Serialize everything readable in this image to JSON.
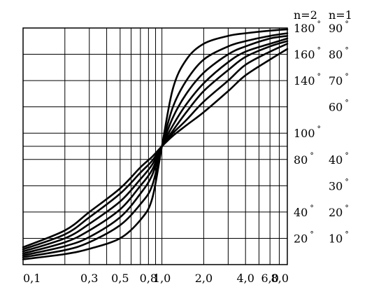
{
  "chart_data": {
    "type": "line",
    "title": "",
    "xlabel": "",
    "ylabel": "",
    "x_scale": "log",
    "xlim": [
      0.1,
      8.0
    ],
    "x_ticks": [
      {
        "value": 0.1,
        "label": "0,1"
      },
      {
        "value": 0.3,
        "label": "0,3"
      },
      {
        "value": 0.5,
        "label": "0,5"
      },
      {
        "value": 0.8,
        "label": "0,8"
      },
      {
        "value": 1.0,
        "label": "1,0"
      },
      {
        "value": 2.0,
        "label": "2,0"
      },
      {
        "value": 4.0,
        "label": "4,0"
      },
      {
        "value": 6.0,
        "label": "6,0"
      },
      {
        "value": 8.0,
        "label": "8,0"
      }
    ],
    "x_gridlines": [
      0.1,
      0.2,
      0.3,
      0.4,
      0.5,
      0.6,
      0.7,
      0.8,
      0.9,
      1.0,
      2.0,
      3.0,
      4.0,
      5.0,
      6.0,
      7.0,
      8.0
    ],
    "ylim": [
      0,
      90
    ],
    "y_gridlines": [
      10,
      20,
      30,
      40,
      45,
      50,
      60,
      70,
      80,
      90
    ],
    "y_axis_headers": {
      "n2": "n=2",
      "n1": "n=1"
    },
    "y_ticks_n2": [
      {
        "value": 10,
        "label": "20"
      },
      {
        "value": 20,
        "label": "40"
      },
      {
        "value": 40,
        "label": "80"
      },
      {
        "value": 50,
        "label": "100"
      },
      {
        "value": 70,
        "label": "140"
      },
      {
        "value": 80,
        "label": "160"
      },
      {
        "value": 90,
        "label": "180"
      }
    ],
    "y_ticks_n1": [
      {
        "value": 10,
        "label": "10"
      },
      {
        "value": 20,
        "label": "20"
      },
      {
        "value": 30,
        "label": "30"
      },
      {
        "value": 40,
        "label": "40"
      },
      {
        "value": 60,
        "label": "60"
      },
      {
        "value": 70,
        "label": "70"
      },
      {
        "value": 80,
        "label": "80"
      },
      {
        "value": 90,
        "label": "90"
      }
    ],
    "degree_symbol": "°",
    "grid": true,
    "series": [
      {
        "x": [
          0.1,
          0.2,
          0.3,
          0.5,
          0.7,
          0.85,
          1.0,
          1.2,
          1.5,
          2.0,
          3.0,
          4.0,
          6.0,
          8.0
        ],
        "values": [
          2,
          4,
          6,
          10,
          17,
          25,
          45,
          67,
          78,
          84,
          87,
          88,
          89,
          89.5
        ]
      },
      {
        "x": [
          0.1,
          0.2,
          0.3,
          0.5,
          0.7,
          0.85,
          1.0,
          1.2,
          1.5,
          2.0,
          3.0,
          4.0,
          6.0,
          8.0
        ],
        "values": [
          2.8,
          5.5,
          8.5,
          15,
          23,
          30,
          45,
          60,
          70,
          78,
          83,
          85,
          87,
          88
        ]
      },
      {
        "x": [
          0.1,
          0.2,
          0.3,
          0.5,
          0.7,
          0.85,
          1.0,
          1.2,
          1.5,
          2.0,
          3.0,
          4.0,
          6.0,
          8.0
        ],
        "values": [
          3.5,
          7,
          10.5,
          18,
          27,
          34,
          45,
          56,
          65,
          73,
          80,
          83,
          86,
          87
        ]
      },
      {
        "x": [
          0.1,
          0.2,
          0.3,
          0.5,
          0.7,
          0.85,
          1.0,
          1.2,
          1.5,
          2.0,
          3.0,
          4.0,
          6.0,
          8.0
        ],
        "values": [
          4.2,
          8.5,
          13,
          21,
          30,
          36,
          45,
          53,
          61,
          69,
          77,
          81,
          84,
          86
        ]
      },
      {
        "x": [
          0.1,
          0.2,
          0.3,
          0.5,
          0.7,
          0.85,
          1.0,
          1.2,
          1.5,
          2.0,
          3.0,
          4.0,
          6.0,
          8.0
        ],
        "values": [
          5,
          10,
          15.5,
          24,
          32.5,
          38,
          45,
          51,
          58,
          66,
          74,
          79,
          83,
          85
        ]
      },
      {
        "x": [
          0.1,
          0.2,
          0.3,
          0.5,
          0.7,
          0.85,
          1.0,
          1.2,
          1.5,
          2.0,
          3.0,
          4.0,
          6.0,
          8.0
        ],
        "values": [
          5.8,
          11.5,
          18,
          27,
          35,
          39.5,
          45,
          50,
          55,
          62,
          70,
          76,
          81,
          84
        ]
      },
      {
        "x": [
          0.1,
          0.2,
          0.3,
          0.5,
          0.7,
          0.85,
          1.0,
          1.2,
          1.5,
          2.0,
          3.0,
          4.0,
          6.0,
          8.0
        ],
        "values": [
          6.6,
          13,
          20,
          29,
          37,
          41,
          45,
          49,
          53,
          58,
          66,
          72,
          78,
          82
        ]
      }
    ]
  }
}
